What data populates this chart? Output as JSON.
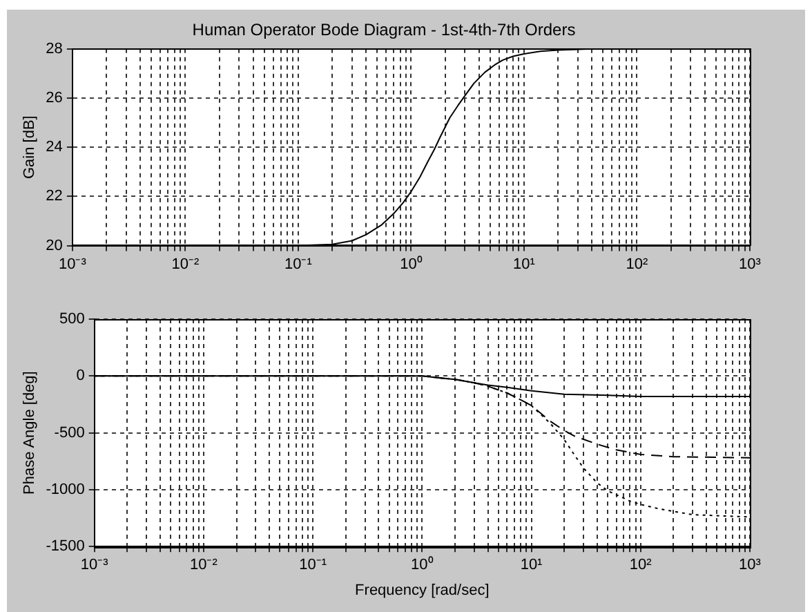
{
  "chart_data": [
    {
      "type": "line",
      "title": "Human Operator Bode Diagram - 1st-4th-7th Orders",
      "ylabel": "Gain [dB]",
      "log": "x",
      "grid": true,
      "legend": false,
      "marker": "none",
      "xlim": [
        0.001,
        1000
      ],
      "ylim": [
        20,
        28
      ],
      "yticks": [
        20,
        22,
        24,
        26,
        28
      ],
      "xticks": [
        {
          "value": 0.001,
          "label": "10⁻³"
        },
        {
          "value": 0.002,
          "label": null
        },
        {
          "value": 0.003,
          "label": null
        },
        {
          "value": 0.004,
          "label": null
        },
        {
          "value": 0.005,
          "label": null
        },
        {
          "value": 0.006,
          "label": null
        },
        {
          "value": 0.007,
          "label": null
        },
        {
          "value": 0.008,
          "label": null
        },
        {
          "value": 0.009,
          "label": null
        },
        {
          "value": 0.01,
          "label": "10⁻²"
        },
        {
          "value": 0.02,
          "label": null
        },
        {
          "value": 0.03,
          "label": null
        },
        {
          "value": 0.04,
          "label": null
        },
        {
          "value": 0.05,
          "label": null
        },
        {
          "value": 0.06,
          "label": null
        },
        {
          "value": 0.07,
          "label": null
        },
        {
          "value": 0.08,
          "label": null
        },
        {
          "value": 0.09,
          "label": null
        },
        {
          "value": 0.1,
          "label": "10⁻¹"
        },
        {
          "value": 0.2,
          "label": null
        },
        {
          "value": 0.3,
          "label": null
        },
        {
          "value": 0.4,
          "label": null
        },
        {
          "value": 0.5,
          "label": null
        },
        {
          "value": 0.6,
          "label": null
        },
        {
          "value": 0.7,
          "label": null
        },
        {
          "value": 0.8,
          "label": null
        },
        {
          "value": 0.9,
          "label": null
        },
        {
          "value": 1,
          "label": "10⁰"
        },
        {
          "value": 2,
          "label": null
        },
        {
          "value": 3,
          "label": null
        },
        {
          "value": 4,
          "label": null
        },
        {
          "value": 5,
          "label": null
        },
        {
          "value": 6,
          "label": null
        },
        {
          "value": 7,
          "label": null
        },
        {
          "value": 8,
          "label": null
        },
        {
          "value": 9,
          "label": null
        },
        {
          "value": 10,
          "label": "10¹"
        },
        {
          "value": 20,
          "label": null
        },
        {
          "value": 30,
          "label": null
        },
        {
          "value": 40,
          "label": null
        },
        {
          "value": 50,
          "label": null
        },
        {
          "value": 60,
          "label": null
        },
        {
          "value": 70,
          "label": null
        },
        {
          "value": 80,
          "label": null
        },
        {
          "value": 90,
          "label": null
        },
        {
          "value": 100,
          "label": "10²"
        },
        {
          "value": 200,
          "label": null
        },
        {
          "value": 300,
          "label": null
        },
        {
          "value": 400,
          "label": null
        },
        {
          "value": 500,
          "label": null
        },
        {
          "value": 600,
          "label": null
        },
        {
          "value": 700,
          "label": null
        },
        {
          "value": 800,
          "label": null
        },
        {
          "value": 900,
          "label": null
        },
        {
          "value": 1000,
          "label": "10³"
        }
      ],
      "series": [
        {
          "color": "#000000",
          "line_style": "solid",
          "x": [
            0.001,
            0.01,
            0.1,
            0.2,
            0.3,
            0.4,
            0.55,
            0.7,
            0.85,
            1,
            1.2,
            1.4,
            1.6,
            1.8,
            2.2,
            2.6,
            3,
            3.6,
            4.5,
            5.5,
            6.5,
            8,
            10,
            14,
            20,
            30,
            40,
            100,
            1000
          ],
          "values": [
            20,
            20,
            20,
            20.05,
            20.2,
            20.45,
            20.85,
            21.3,
            21.75,
            22.2,
            22.8,
            23.4,
            23.9,
            24.4,
            25.2,
            25.7,
            26.1,
            26.6,
            27.05,
            27.35,
            27.55,
            27.7,
            27.8,
            27.9,
            27.95,
            27.98,
            28,
            28,
            28
          ]
        }
      ]
    },
    {
      "type": "line",
      "xlabel": "Frequency [rad/sec]",
      "ylabel": "Phase Angle [deg]",
      "log": "x",
      "grid": true,
      "legend": false,
      "marker": "none",
      "xlim": [
        0.001,
        1000
      ],
      "ylim": [
        -1500,
        500
      ],
      "yticks": [
        -1500,
        -1000,
        -500,
        0,
        500
      ],
      "xticks": [
        {
          "value": 0.001,
          "label": "10⁻³"
        },
        {
          "value": 0.002,
          "label": null
        },
        {
          "value": 0.003,
          "label": null
        },
        {
          "value": 0.004,
          "label": null
        },
        {
          "value": 0.005,
          "label": null
        },
        {
          "value": 0.006,
          "label": null
        },
        {
          "value": 0.007,
          "label": null
        },
        {
          "value": 0.008,
          "label": null
        },
        {
          "value": 0.009,
          "label": null
        },
        {
          "value": 0.01,
          "label": "10⁻²"
        },
        {
          "value": 0.02,
          "label": null
        },
        {
          "value": 0.03,
          "label": null
        },
        {
          "value": 0.04,
          "label": null
        },
        {
          "value": 0.05,
          "label": null
        },
        {
          "value": 0.06,
          "label": null
        },
        {
          "value": 0.07,
          "label": null
        },
        {
          "value": 0.08,
          "label": null
        },
        {
          "value": 0.09,
          "label": null
        },
        {
          "value": 0.1,
          "label": "10⁻¹"
        },
        {
          "value": 0.2,
          "label": null
        },
        {
          "value": 0.3,
          "label": null
        },
        {
          "value": 0.4,
          "label": null
        },
        {
          "value": 0.5,
          "label": null
        },
        {
          "value": 0.6,
          "label": null
        },
        {
          "value": 0.7,
          "label": null
        },
        {
          "value": 0.8,
          "label": null
        },
        {
          "value": 0.9,
          "label": null
        },
        {
          "value": 1,
          "label": "10⁰"
        },
        {
          "value": 2,
          "label": null
        },
        {
          "value": 3,
          "label": null
        },
        {
          "value": 4,
          "label": null
        },
        {
          "value": 5,
          "label": null
        },
        {
          "value": 6,
          "label": null
        },
        {
          "value": 7,
          "label": null
        },
        {
          "value": 8,
          "label": null
        },
        {
          "value": 9,
          "label": null
        },
        {
          "value": 10,
          "label": "10¹"
        },
        {
          "value": 20,
          "label": null
        },
        {
          "value": 30,
          "label": null
        },
        {
          "value": 40,
          "label": null
        },
        {
          "value": 50,
          "label": null
        },
        {
          "value": 60,
          "label": null
        },
        {
          "value": 70,
          "label": null
        },
        {
          "value": 80,
          "label": null
        },
        {
          "value": 90,
          "label": null
        },
        {
          "value": 100,
          "label": "10²"
        },
        {
          "value": 200,
          "label": null
        },
        {
          "value": 300,
          "label": null
        },
        {
          "value": 400,
          "label": null
        },
        {
          "value": 500,
          "label": null
        },
        {
          "value": 600,
          "label": null
        },
        {
          "value": 700,
          "label": null
        },
        {
          "value": 800,
          "label": null
        },
        {
          "value": 900,
          "label": null
        },
        {
          "value": 1000,
          "label": "10³"
        }
      ],
      "series": [
        {
          "color": "#000000",
          "line_style": "solid",
          "x": [
            0.001,
            0.1,
            0.5,
            1,
            1.5,
            2,
            3,
            4,
            6,
            10,
            20,
            50,
            100,
            200,
            1000
          ],
          "values": [
            0,
            0,
            0,
            0,
            -20,
            -30,
            -60,
            -80,
            -100,
            -130,
            -160,
            -170,
            -180,
            -180,
            -180
          ]
        },
        {
          "color": "#000000",
          "line_style": "dashed",
          "x": [
            0.001,
            1,
            2,
            3,
            4,
            6,
            8,
            10,
            15,
            20,
            25,
            40,
            60,
            100,
            200,
            1000
          ],
          "values": [
            0,
            0,
            -30,
            -60,
            -90,
            -150,
            -210,
            -260,
            -400,
            -480,
            -530,
            -600,
            -650,
            -690,
            -710,
            -720
          ]
        },
        {
          "color": "#000000",
          "line_style": "dotted",
          "x": [
            0.001,
            1,
            2,
            3,
            4,
            6,
            8,
            10,
            15,
            20,
            25,
            30,
            40,
            50,
            80,
            100,
            150,
            300,
            1000
          ],
          "values": [
            0,
            0,
            -30,
            -60,
            -90,
            -150,
            -210,
            -260,
            -420,
            -560,
            -700,
            -810,
            -940,
            -1010,
            -1100,
            -1130,
            -1170,
            -1220,
            -1240
          ]
        }
      ]
    }
  ]
}
